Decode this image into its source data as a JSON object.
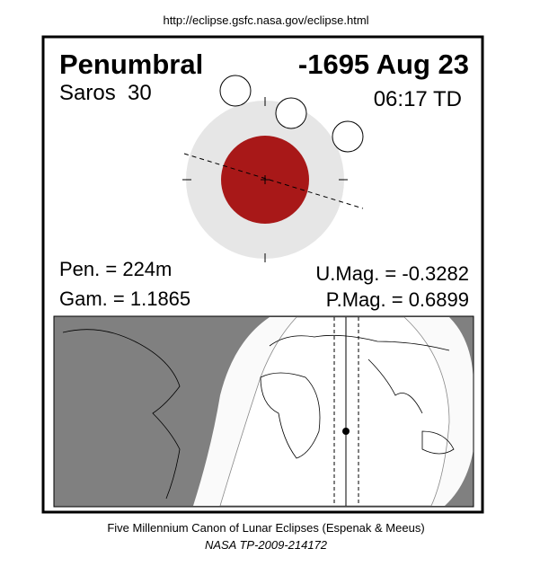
{
  "header": {
    "url": "http://eclipse.gsfc.nasa.gov/eclipse.html"
  },
  "eclipse": {
    "type": "Penumbral",
    "date": "-1695 Aug 23",
    "saros": "Saros  30",
    "time": "06:17 TD",
    "pen": "Pen. = 224m",
    "gam": "Gam. = 1.1865",
    "umag": "U.Mag. = -0.3282",
    "pmag": "P.Mag. = 0.6899"
  },
  "footer": {
    "line1": "Five Millennium Canon of Lunar Eclipses (Espenak & Meeus)",
    "line2": "NASA TP-2009-214172"
  }
}
